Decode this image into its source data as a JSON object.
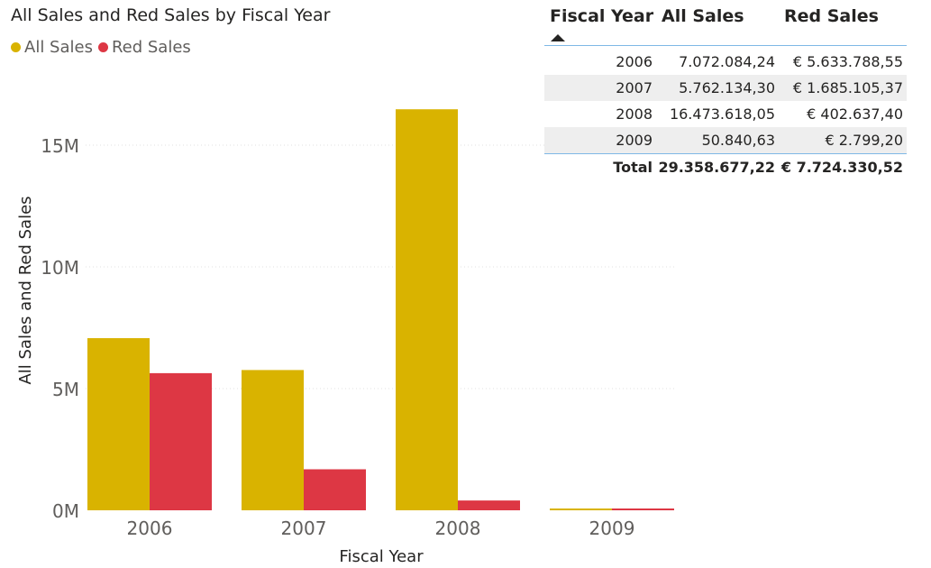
{
  "chart_data": {
    "type": "bar",
    "title": "All Sales and Red Sales by Fiscal Year",
    "xlabel": "Fiscal Year",
    "ylabel": "All Sales and Red Sales",
    "categories": [
      "2006",
      "2007",
      "2008",
      "2009"
    ],
    "series": [
      {
        "name": "All Sales",
        "color": "#d9b300",
        "values": [
          7072084.24,
          5762134.3,
          16473618.05,
          50840.63
        ]
      },
      {
        "name": "Red Sales",
        "color": "#dd3744",
        "values": [
          5633788.55,
          1685105.37,
          402637.4,
          2799.2
        ]
      }
    ],
    "yticks": [
      {
        "value": 0,
        "label": "0M"
      },
      {
        "value": 5000000,
        "label": "5M"
      },
      {
        "value": 10000000,
        "label": "10M"
      },
      {
        "value": 15000000,
        "label": "15M"
      }
    ],
    "ylim": [
      0,
      18000000
    ],
    "legend": "top-left",
    "grid": true
  },
  "table": {
    "headers": [
      "Fiscal Year",
      "All Sales",
      "Red Sales"
    ],
    "rows": [
      [
        "2006",
        "7.072.084,24",
        "€ 5.633.788,55"
      ],
      [
        "2007",
        "5.762.134,30",
        "€ 1.685.105,37"
      ],
      [
        "2008",
        "16.473.618,05",
        "€ 402.637,40"
      ],
      [
        "2009",
        "50.840,63",
        "€ 2.799,20"
      ]
    ],
    "total": [
      "Total",
      "29.358.677,22",
      "€ 7.724.330,52"
    ],
    "sort_column": "Fiscal Year",
    "sort_direction": "ascending"
  }
}
